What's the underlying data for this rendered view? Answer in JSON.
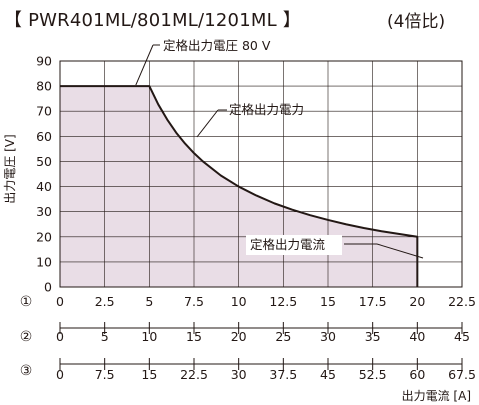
{
  "header": {
    "title": "【 PWR401ML/801ML/1201ML 】",
    "ratio": "(4倍比)"
  },
  "chart_data": {
    "type": "area",
    "title": "【 PWR401ML/801ML/1201ML 】",
    "subtitle": "(4倍比)",
    "ylabel": "出力電圧 [V]",
    "xlabel": "出力電流 [A]",
    "ylim": [
      0,
      90
    ],
    "y_ticks": [
      "0",
      "10",
      "20",
      "30",
      "40",
      "50",
      "60",
      "70",
      "80",
      "90"
    ],
    "grid": true,
    "x_axes": [
      {
        "label": "①",
        "xlim": [
          0,
          22.5
        ],
        "ticks": [
          "0",
          "2.5",
          "5",
          "7.5",
          "10",
          "12.5",
          "15",
          "17.5",
          "20",
          "22.5"
        ]
      },
      {
        "label": "②",
        "xlim": [
          0,
          45
        ],
        "ticks": [
          "0",
          "5",
          "10",
          "15",
          "20",
          "25",
          "30",
          "35",
          "40",
          "45"
        ]
      },
      {
        "label": "③",
        "xlim": [
          0,
          67.5
        ],
        "ticks": [
          "0",
          "7.5",
          "15",
          "22.5",
          "30",
          "37.5",
          "45",
          "52.5",
          "60",
          "67.5"
        ]
      }
    ],
    "series": [
      {
        "x": [
          0,
          5,
          5.5,
          6,
          6.5,
          7,
          7.5,
          8,
          9,
          10,
          11,
          12,
          13,
          14,
          15,
          16,
          17,
          18,
          19,
          20,
          20
        ],
        "y": [
          80,
          80,
          72.7,
          66.7,
          61.5,
          57.1,
          53.3,
          50,
          44.4,
          40,
          36.4,
          33.3,
          30.8,
          28.6,
          26.7,
          25,
          23.5,
          22.2,
          21.1,
          20,
          0
        ]
      }
    ],
    "annotations": [
      {
        "text": "定格出力電圧 80 V",
        "x": 4.3,
        "y": 80
      },
      {
        "text": "定格出力電力",
        "x": 9.7,
        "y": 63
      },
      {
        "text": "定格出力電流",
        "x": 20,
        "y": 20
      }
    ],
    "colors": {
      "fill": "#e9dde6",
      "line": "#231815",
      "grid": "#231815"
    }
  }
}
